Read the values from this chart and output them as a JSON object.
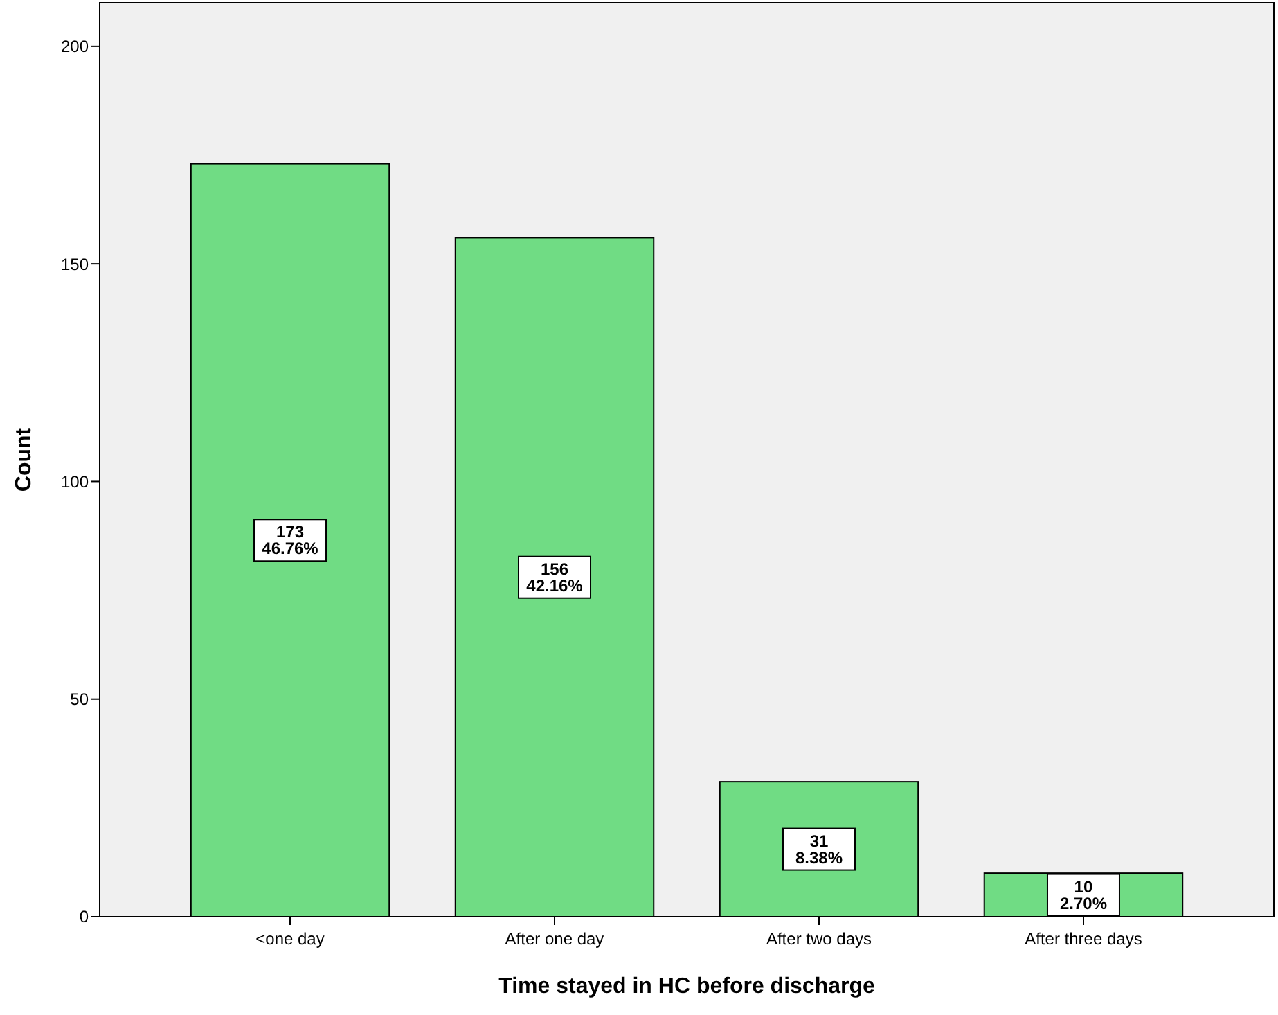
{
  "chart_data": {
    "type": "bar",
    "xlabel": "Time stayed in HC before discharge",
    "ylabel": "Count",
    "categories": [
      "<one day",
      "After one day",
      "After two days",
      "After three days"
    ],
    "values": [
      173,
      156,
      31,
      10
    ],
    "value_labels": [
      "173\n46.76%",
      "156\n42.16%",
      "31\n8.38%",
      "10\n2.70%"
    ],
    "color": "#70dc84",
    "ylim": [
      0,
      210
    ],
    "yticks": [
      0,
      50,
      100,
      150,
      200
    ],
    "grid": false
  }
}
